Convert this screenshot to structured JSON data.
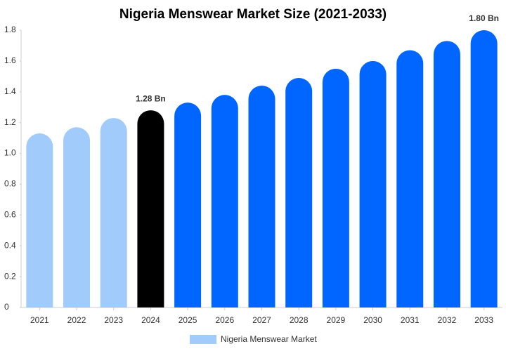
{
  "chart_data": {
    "type": "bar",
    "title": "Nigeria Menswear Market Size (2021-2033)",
    "categories": [
      "2021",
      "2022",
      "2023",
      "2024",
      "2025",
      "2026",
      "2027",
      "2028",
      "2029",
      "2030",
      "2031",
      "2032",
      "2033"
    ],
    "series": [
      {
        "name": "Nigeria Menswear Market",
        "color": "#a0cbfa",
        "colors": [
          "#a0cbfa",
          "#a0cbfa",
          "#a0cbfa",
          "#000000",
          "#0066ff",
          "#0066ff",
          "#0066ff",
          "#0066ff",
          "#0066ff",
          "#0066ff",
          "#0066ff",
          "#0066ff",
          "#0066ff"
        ],
        "values": [
          1.13,
          1.17,
          1.23,
          1.28,
          1.33,
          1.38,
          1.44,
          1.49,
          1.55,
          1.6,
          1.67,
          1.73,
          1.8
        ],
        "value_labels": [
          null,
          null,
          null,
          "1.28 Bn",
          null,
          null,
          null,
          null,
          null,
          null,
          null,
          null,
          "1.80 Bn"
        ]
      }
    ],
    "ylim": [
      0,
      1.8
    ],
    "yticks": [
      0,
      0.2,
      0.4,
      0.6,
      0.8,
      {
        "value": 1,
        "label": "1.0"
      },
      1.2,
      1.4,
      1.6,
      1.8
    ],
    "legend": "bottom"
  }
}
